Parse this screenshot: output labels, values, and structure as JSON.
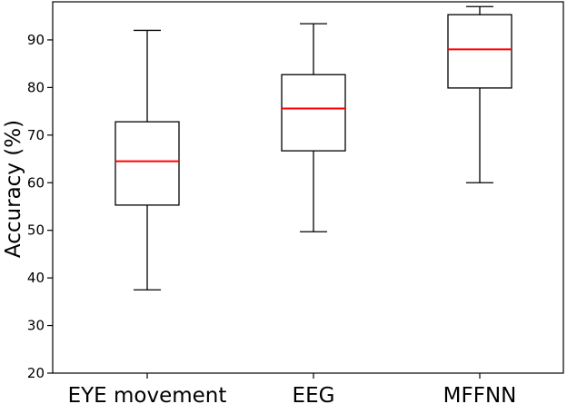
{
  "chart_data": {
    "type": "box",
    "title": "",
    "xlabel": "",
    "ylabel": "Accuracy (%)",
    "ylim": [
      20,
      98
    ],
    "yticks": [
      20,
      30,
      40,
      50,
      60,
      70,
      80,
      90
    ],
    "grid": false,
    "categories": [
      "EYE movement",
      "EEG",
      "MFFNN"
    ],
    "boxes": [
      {
        "category": "EYE movement",
        "whisker_low": 37.5,
        "q1": 55.3,
        "median": 64.5,
        "q3": 72.8,
        "whisker_high": 92.0
      },
      {
        "category": "EEG",
        "whisker_low": 49.7,
        "q1": 66.7,
        "median": 75.6,
        "q3": 82.7,
        "whisker_high": 93.4
      },
      {
        "category": "MFFNN",
        "whisker_low": 60.0,
        "q1": 79.9,
        "median": 88.0,
        "q3": 95.3,
        "whisker_high": 97.0
      }
    ],
    "colors": {
      "box": "#000000",
      "median": "#ff0000"
    }
  }
}
